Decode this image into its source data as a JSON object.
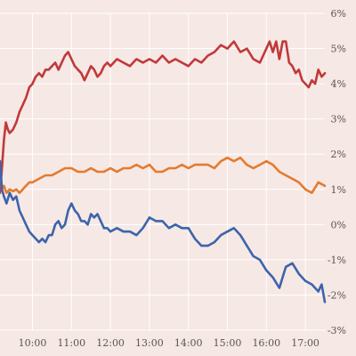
{
  "chart_data": {
    "type": "line",
    "x_unit": "time of day",
    "x_range": [
      "09:10",
      "17:30"
    ],
    "x_ticks": [
      "10:00",
      "11:00",
      "12:00",
      "13:00",
      "14:00",
      "15:00",
      "16:00",
      "17:00"
    ],
    "y_ticks": [
      "6%",
      "5%",
      "4%",
      "3%",
      "2%",
      "1%",
      "0%",
      "-1%",
      "-2%",
      "-3%"
    ],
    "ylim": [
      -3,
      6
    ],
    "grid": true,
    "y_axis_side": "right",
    "legend": "none",
    "title": "",
    "xlabel": "",
    "ylabel": "",
    "series": [
      {
        "color": "#c0393b",
        "points": [
          [
            "09:10",
            0.9
          ],
          [
            "09:13",
            1.6
          ],
          [
            "09:16",
            2.4
          ],
          [
            "09:19",
            2.9
          ],
          [
            "09:22",
            2.7
          ],
          [
            "09:25",
            2.6
          ],
          [
            "09:30",
            2.7
          ],
          [
            "09:35",
            2.9
          ],
          [
            "09:40",
            3.2
          ],
          [
            "09:45",
            3.4
          ],
          [
            "09:50",
            3.6
          ],
          [
            "09:55",
            3.9
          ],
          [
            "10:00",
            4.0
          ],
          [
            "10:05",
            4.2
          ],
          [
            "10:10",
            4.3
          ],
          [
            "10:15",
            4.2
          ],
          [
            "10:20",
            4.4
          ],
          [
            "10:25",
            4.4
          ],
          [
            "10:30",
            4.5
          ],
          [
            "10:35",
            4.6
          ],
          [
            "10:40",
            4.4
          ],
          [
            "10:45",
            4.6
          ],
          [
            "10:50",
            4.8
          ],
          [
            "10:55",
            4.9
          ],
          [
            "11:00",
            4.7
          ],
          [
            "11:05",
            4.5
          ],
          [
            "11:10",
            4.4
          ],
          [
            "11:15",
            4.3
          ],
          [
            "11:20",
            4.1
          ],
          [
            "11:25",
            4.3
          ],
          [
            "11:30",
            4.5
          ],
          [
            "11:35",
            4.4
          ],
          [
            "11:40",
            4.2
          ],
          [
            "11:45",
            4.3
          ],
          [
            "11:50",
            4.5
          ],
          [
            "11:55",
            4.6
          ],
          [
            "12:00",
            4.5
          ],
          [
            "12:10",
            4.7
          ],
          [
            "12:20",
            4.6
          ],
          [
            "12:30",
            4.5
          ],
          [
            "12:40",
            4.7
          ],
          [
            "12:50",
            4.6
          ],
          [
            "13:00",
            4.7
          ],
          [
            "13:10",
            4.6
          ],
          [
            "13:20",
            4.8
          ],
          [
            "13:30",
            4.6
          ],
          [
            "13:40",
            4.7
          ],
          [
            "13:50",
            4.6
          ],
          [
            "14:00",
            4.5
          ],
          [
            "14:10",
            4.7
          ],
          [
            "14:20",
            4.6
          ],
          [
            "14:30",
            4.8
          ],
          [
            "14:40",
            4.9
          ],
          [
            "14:50",
            5.1
          ],
          [
            "15:00",
            5.0
          ],
          [
            "15:10",
            5.2
          ],
          [
            "15:20",
            4.9
          ],
          [
            "15:30",
            5.0
          ],
          [
            "15:40",
            4.7
          ],
          [
            "15:50",
            4.6
          ],
          [
            "16:00",
            5.0
          ],
          [
            "16:05",
            5.2
          ],
          [
            "16:10",
            4.9
          ],
          [
            "16:15",
            5.2
          ],
          [
            "16:20",
            4.7
          ],
          [
            "16:25",
            5.2
          ],
          [
            "16:30",
            5.2
          ],
          [
            "16:35",
            4.6
          ],
          [
            "16:40",
            4.5
          ],
          [
            "16:45",
            4.3
          ],
          [
            "16:50",
            4.4
          ],
          [
            "16:55",
            4.1
          ],
          [
            "17:00",
            4.0
          ],
          [
            "17:05",
            3.9
          ],
          [
            "17:10",
            4.1
          ],
          [
            "17:15",
            4.0
          ],
          [
            "17:20",
            4.4
          ],
          [
            "17:25",
            4.2
          ],
          [
            "17:30",
            4.3
          ]
        ]
      },
      {
        "color": "#e37b2f",
        "points": [
          [
            "09:10",
            1.6
          ],
          [
            "09:13",
            1.0
          ],
          [
            "09:16",
            1.1
          ],
          [
            "09:20",
            0.9
          ],
          [
            "09:25",
            1.0
          ],
          [
            "09:30",
            0.95
          ],
          [
            "09:35",
            1.0
          ],
          [
            "09:40",
            0.9
          ],
          [
            "09:45",
            1.0
          ],
          [
            "09:50",
            1.1
          ],
          [
            "09:55",
            1.2
          ],
          [
            "10:00",
            1.2
          ],
          [
            "10:10",
            1.3
          ],
          [
            "10:20",
            1.4
          ],
          [
            "10:30",
            1.4
          ],
          [
            "10:40",
            1.5
          ],
          [
            "10:50",
            1.6
          ],
          [
            "11:00",
            1.6
          ],
          [
            "11:10",
            1.5
          ],
          [
            "11:20",
            1.5
          ],
          [
            "11:30",
            1.6
          ],
          [
            "11:40",
            1.5
          ],
          [
            "11:50",
            1.5
          ],
          [
            "12:00",
            1.6
          ],
          [
            "12:10",
            1.5
          ],
          [
            "12:20",
            1.6
          ],
          [
            "12:30",
            1.6
          ],
          [
            "12:40",
            1.7
          ],
          [
            "12:50",
            1.6
          ],
          [
            "13:00",
            1.7
          ],
          [
            "13:10",
            1.5
          ],
          [
            "13:20",
            1.5
          ],
          [
            "13:30",
            1.6
          ],
          [
            "13:40",
            1.6
          ],
          [
            "13:50",
            1.7
          ],
          [
            "14:00",
            1.6
          ],
          [
            "14:10",
            1.7
          ],
          [
            "14:20",
            1.7
          ],
          [
            "14:30",
            1.7
          ],
          [
            "14:40",
            1.6
          ],
          [
            "14:50",
            1.8
          ],
          [
            "15:00",
            1.9
          ],
          [
            "15:10",
            1.8
          ],
          [
            "15:20",
            1.9
          ],
          [
            "15:30",
            1.7
          ],
          [
            "15:40",
            1.6
          ],
          [
            "15:50",
            1.7
          ],
          [
            "16:00",
            1.8
          ],
          [
            "16:10",
            1.7
          ],
          [
            "16:20",
            1.5
          ],
          [
            "16:30",
            1.4
          ],
          [
            "16:40",
            1.3
          ],
          [
            "16:50",
            1.2
          ],
          [
            "17:00",
            1.0
          ],
          [
            "17:10",
            0.9
          ],
          [
            "17:20",
            1.2
          ],
          [
            "17:30",
            1.1
          ]
        ]
      },
      {
        "color": "#3c64ad",
        "points": [
          [
            "09:10",
            1.8
          ],
          [
            "09:13",
            1.0
          ],
          [
            "09:16",
            0.8
          ],
          [
            "09:20",
            0.6
          ],
          [
            "09:25",
            0.9
          ],
          [
            "09:30",
            0.7
          ],
          [
            "09:35",
            0.8
          ],
          [
            "09:40",
            0.4
          ],
          [
            "09:45",
            0.2
          ],
          [
            "09:50",
            0.0
          ],
          [
            "09:55",
            -0.2
          ],
          [
            "10:00",
            -0.3
          ],
          [
            "10:10",
            -0.5
          ],
          [
            "10:15",
            -0.4
          ],
          [
            "10:20",
            -0.5
          ],
          [
            "10:25",
            -0.3
          ],
          [
            "10:30",
            -0.3
          ],
          [
            "10:35",
            0.0
          ],
          [
            "10:40",
            0.1
          ],
          [
            "10:45",
            -0.1
          ],
          [
            "10:50",
            0.0
          ],
          [
            "10:55",
            0.4
          ],
          [
            "11:00",
            0.6
          ],
          [
            "11:05",
            0.4
          ],
          [
            "11:10",
            0.3
          ],
          [
            "11:15",
            0.1
          ],
          [
            "11:20",
            0.1
          ],
          [
            "11:25",
            0.0
          ],
          [
            "11:30",
            0.3
          ],
          [
            "11:35",
            0.2
          ],
          [
            "11:40",
            0.3
          ],
          [
            "11:45",
            0.1
          ],
          [
            "11:50",
            -0.1
          ],
          [
            "11:55",
            -0.1
          ],
          [
            "12:00",
            -0.2
          ],
          [
            "12:10",
            -0.1
          ],
          [
            "12:20",
            -0.2
          ],
          [
            "12:30",
            -0.2
          ],
          [
            "12:40",
            -0.3
          ],
          [
            "12:50",
            -0.1
          ],
          [
            "13:00",
            0.2
          ],
          [
            "13:10",
            0.1
          ],
          [
            "13:20",
            0.1
          ],
          [
            "13:30",
            -0.1
          ],
          [
            "13:40",
            0.0
          ],
          [
            "13:50",
            -0.1
          ],
          [
            "14:00",
            -0.1
          ],
          [
            "14:10",
            -0.4
          ],
          [
            "14:20",
            -0.6
          ],
          [
            "14:30",
            -0.6
          ],
          [
            "14:40",
            -0.5
          ],
          [
            "14:50",
            -0.3
          ],
          [
            "15:00",
            -0.2
          ],
          [
            "15:10",
            -0.1
          ],
          [
            "15:20",
            -0.3
          ],
          [
            "15:30",
            -0.6
          ],
          [
            "15:40",
            -0.9
          ],
          [
            "15:50",
            -1.0
          ],
          [
            "16:00",
            -1.3
          ],
          [
            "16:10",
            -1.5
          ],
          [
            "16:20",
            -1.8
          ],
          [
            "16:30",
            -1.2
          ],
          [
            "16:40",
            -1.1
          ],
          [
            "16:50",
            -1.4
          ],
          [
            "17:00",
            -1.6
          ],
          [
            "17:10",
            -1.7
          ],
          [
            "17:20",
            -1.9
          ],
          [
            "17:25",
            -1.7
          ],
          [
            "17:30",
            -2.2
          ]
        ]
      }
    ]
  }
}
